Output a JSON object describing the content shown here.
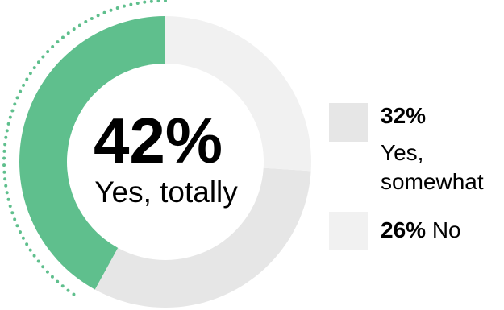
{
  "chart_data": {
    "type": "pie",
    "categories": [
      "Yes, totally",
      "Yes, somewhat",
      "No"
    ],
    "values": [
      42,
      32,
      26
    ],
    "value_labels": [
      "42%",
      "32%",
      "26%"
    ],
    "colors": [
      "#5fbf8d",
      "#e6e6e6",
      "#f1f1f1"
    ],
    "highlight": {
      "value_label": "42%",
      "label": "Yes, totally"
    },
    "legend": [
      {
        "value_label": "32%",
        "label": "Yes, somewhat",
        "color": "#e6e6e6"
      },
      {
        "value_label": "26%",
        "label": "No",
        "color": "#f1f1f1"
      }
    ],
    "legend_position": "right",
    "style": "donut",
    "accent_dots_color": "#5fbf8d"
  }
}
